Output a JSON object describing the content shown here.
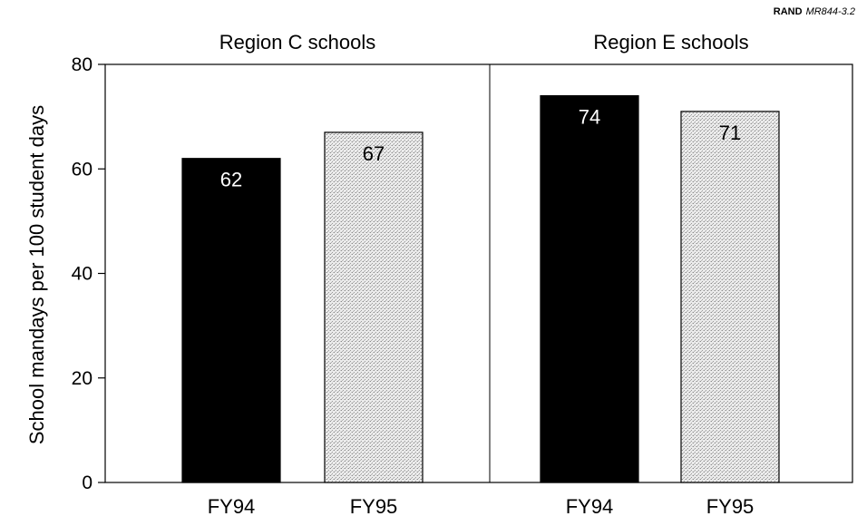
{
  "source_tag": {
    "org": "RAND",
    "code": "MR844-3.2"
  },
  "chart_data": {
    "type": "bar",
    "ylabel": "School mandays per 100 student days",
    "ylim": [
      0,
      80
    ],
    "yticks": [
      0,
      20,
      40,
      60,
      80
    ],
    "grid": false,
    "panels": [
      {
        "title": "Region C schools",
        "categories": [
          "FY94",
          "FY95"
        ],
        "values": [
          62,
          67
        ],
        "labels": [
          "62",
          "67"
        ]
      },
      {
        "title": "Region E schools",
        "categories": [
          "FY94",
          "FY95"
        ],
        "values": [
          74,
          71
        ],
        "labels": [
          "74",
          "71"
        ]
      }
    ],
    "colors": {
      "FY94": "#000000",
      "FY95": "#d9d9d9"
    }
  }
}
